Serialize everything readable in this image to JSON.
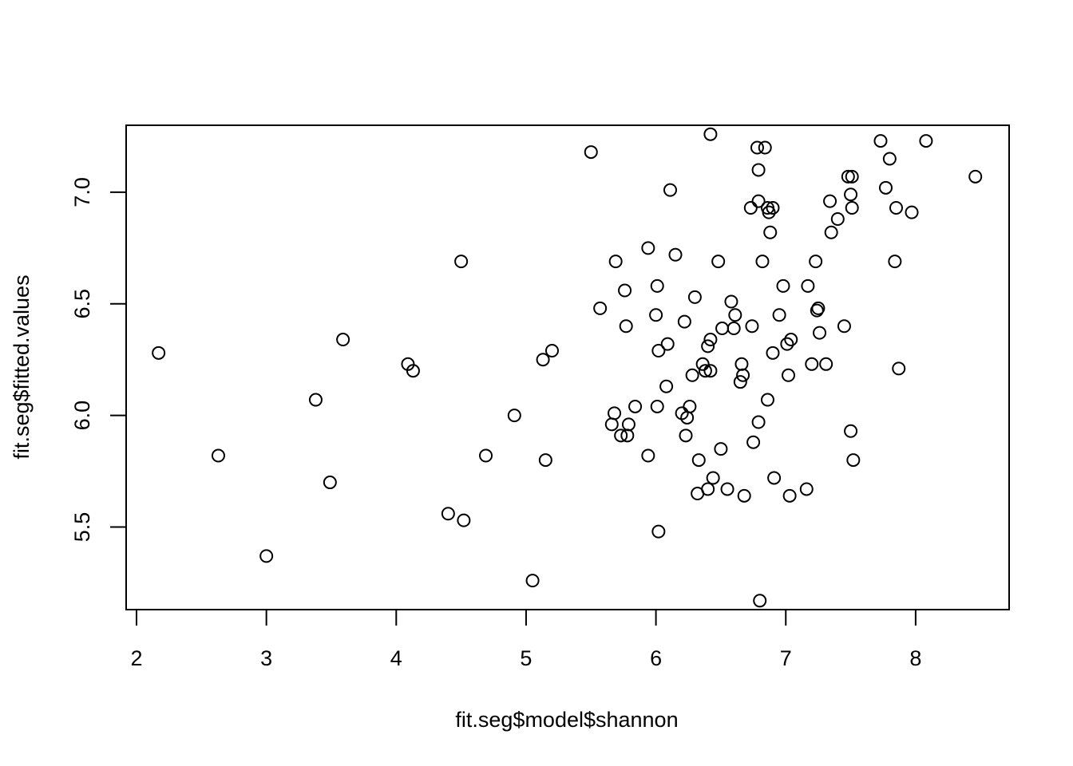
{
  "chart_data": {
    "type": "scatter",
    "xlabel": "fit.seg$model$shannon",
    "ylabel": "fit.seg$fitted.values",
    "xlim": [
      1.92,
      8.72
    ],
    "ylim": [
      5.13,
      7.3
    ],
    "x_ticks": [
      2,
      3,
      4,
      5,
      6,
      7,
      8
    ],
    "x_tick_labels": [
      "2",
      "3",
      "4",
      "5",
      "6",
      "7",
      "8"
    ],
    "y_ticks": [
      5.5,
      6.0,
      6.5,
      7.0
    ],
    "y_tick_labels": [
      "5.5",
      "6.0",
      "6.5",
      "7.0"
    ],
    "marker": "open-circle",
    "grid": false,
    "points": [
      [
        2.17,
        6.28
      ],
      [
        2.63,
        5.82
      ],
      [
        3.0,
        5.37
      ],
      [
        3.38,
        6.07
      ],
      [
        3.49,
        5.7
      ],
      [
        3.59,
        6.34
      ],
      [
        4.09,
        6.23
      ],
      [
        4.13,
        6.2
      ],
      [
        4.4,
        5.56
      ],
      [
        4.5,
        6.69
      ],
      [
        4.52,
        5.53
      ],
      [
        4.69,
        5.82
      ],
      [
        4.91,
        6.0
      ],
      [
        5.05,
        5.26
      ],
      [
        5.13,
        6.25
      ],
      [
        5.15,
        5.8
      ],
      [
        5.2,
        6.29
      ],
      [
        5.5,
        7.18
      ],
      [
        5.57,
        6.48
      ],
      [
        5.66,
        5.96
      ],
      [
        5.68,
        6.01
      ],
      [
        5.69,
        6.69
      ],
      [
        5.73,
        5.91
      ],
      [
        5.76,
        6.56
      ],
      [
        5.77,
        6.4
      ],
      [
        5.78,
        5.91
      ],
      [
        5.79,
        5.96
      ],
      [
        5.84,
        6.04
      ],
      [
        5.94,
        6.75
      ],
      [
        5.94,
        5.82
      ],
      [
        6.0,
        6.45
      ],
      [
        6.01,
        6.58
      ],
      [
        6.01,
        6.04
      ],
      [
        6.02,
        6.29
      ],
      [
        6.02,
        5.48
      ],
      [
        6.08,
        6.13
      ],
      [
        6.09,
        6.32
      ],
      [
        6.11,
        7.01
      ],
      [
        6.15,
        6.72
      ],
      [
        6.2,
        6.01
      ],
      [
        6.22,
        6.42
      ],
      [
        6.23,
        5.91
      ],
      [
        6.24,
        5.99
      ],
      [
        6.26,
        6.04
      ],
      [
        6.28,
        6.18
      ],
      [
        6.3,
        6.53
      ],
      [
        6.32,
        5.65
      ],
      [
        6.33,
        5.8
      ],
      [
        6.36,
        6.23
      ],
      [
        6.38,
        6.2
      ],
      [
        6.4,
        6.31
      ],
      [
        6.4,
        5.67
      ],
      [
        6.42,
        6.2
      ],
      [
        6.42,
        6.34
      ],
      [
        6.42,
        7.26
      ],
      [
        6.44,
        5.72
      ],
      [
        6.48,
        6.69
      ],
      [
        6.5,
        5.85
      ],
      [
        6.51,
        6.39
      ],
      [
        6.55,
        5.67
      ],
      [
        6.58,
        6.51
      ],
      [
        6.6,
        6.39
      ],
      [
        6.61,
        6.45
      ],
      [
        6.65,
        6.15
      ],
      [
        6.66,
        6.23
      ],
      [
        6.67,
        6.18
      ],
      [
        6.68,
        5.64
      ],
      [
        6.73,
        6.93
      ],
      [
        6.74,
        6.4
      ],
      [
        6.75,
        5.88
      ],
      [
        6.78,
        7.2
      ],
      [
        6.79,
        7.1
      ],
      [
        6.79,
        6.96
      ],
      [
        6.79,
        5.97
      ],
      [
        6.8,
        5.17
      ],
      [
        6.82,
        6.69
      ],
      [
        6.84,
        7.2
      ],
      [
        6.86,
        6.07
      ],
      [
        6.86,
        6.93
      ],
      [
        6.87,
        6.91
      ],
      [
        6.88,
        6.82
      ],
      [
        6.9,
        6.28
      ],
      [
        6.9,
        6.93
      ],
      [
        6.91,
        5.72
      ],
      [
        6.95,
        6.45
      ],
      [
        6.98,
        6.58
      ],
      [
        7.01,
        6.32
      ],
      [
        7.02,
        6.18
      ],
      [
        7.03,
        5.64
      ],
      [
        7.04,
        6.34
      ],
      [
        7.16,
        5.67
      ],
      [
        7.17,
        6.58
      ],
      [
        7.2,
        6.23
      ],
      [
        7.23,
        6.69
      ],
      [
        7.24,
        6.47
      ],
      [
        7.25,
        6.48
      ],
      [
        7.26,
        6.37
      ],
      [
        7.31,
        6.23
      ],
      [
        7.34,
        6.96
      ],
      [
        7.35,
        6.82
      ],
      [
        7.4,
        6.88
      ],
      [
        7.45,
        6.4
      ],
      [
        7.48,
        7.07
      ],
      [
        7.5,
        6.99
      ],
      [
        7.5,
        5.93
      ],
      [
        7.51,
        7.07
      ],
      [
        7.51,
        6.93
      ],
      [
        7.52,
        5.8
      ],
      [
        7.73,
        7.23
      ],
      [
        7.77,
        7.02
      ],
      [
        7.8,
        7.15
      ],
      [
        7.84,
        6.69
      ],
      [
        7.85,
        6.93
      ],
      [
        7.87,
        6.21
      ],
      [
        7.97,
        6.91
      ],
      [
        8.08,
        7.23
      ],
      [
        8.46,
        7.07
      ]
    ]
  }
}
